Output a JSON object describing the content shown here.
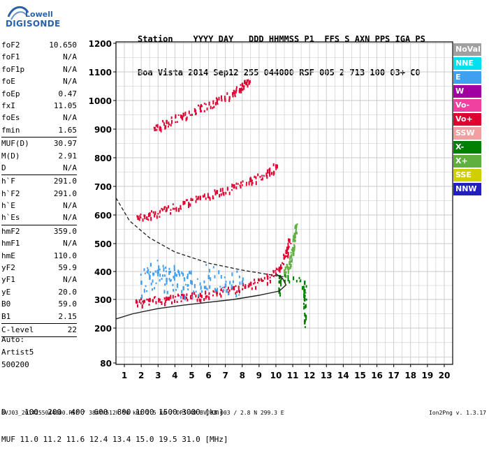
{
  "logo": {
    "line1": "Lowell",
    "line2": "DIGISONDE"
  },
  "header": {
    "row1": [
      "Station",
      "YYYY DAY",
      "DDD HHMMSS P1",
      "FFS S AXN PPS IGA PS"
    ],
    "row2": [
      "Boa Vista",
      "2014 Sep12",
      "255 044000 RSF",
      "005 2 713 100 03+ C0"
    ]
  },
  "params": {
    "group1": [
      {
        "name": "foF2",
        "value": "10.650"
      },
      {
        "name": "foF1",
        "value": "N/A"
      },
      {
        "name": "foF1p",
        "value": "N/A"
      },
      {
        "name": "foE",
        "value": "N/A"
      },
      {
        "name": "foEp",
        "value": "0.47"
      },
      {
        "name": "fxI",
        "value": "11.05"
      },
      {
        "name": "foEs",
        "value": "N/A"
      },
      {
        "name": "fmin",
        "value": "1.65"
      }
    ],
    "group2": [
      {
        "name": "MUF(D)",
        "value": "30.97"
      },
      {
        "name": "M(D)",
        "value": "2.91"
      },
      {
        "name": "D",
        "value": "N/A"
      }
    ],
    "group3": [
      {
        "name": "h`F",
        "value": "291.0"
      },
      {
        "name": "h`F2",
        "value": "291.0"
      },
      {
        "name": "h`E",
        "value": "N/A"
      },
      {
        "name": "h`Es",
        "value": "N/A"
      }
    ],
    "group4": [
      {
        "name": "hmF2",
        "value": "359.0"
      },
      {
        "name": "hmF1",
        "value": "N/A"
      },
      {
        "name": "hmE",
        "value": "110.0"
      },
      {
        "name": "yF2",
        "value": "59.9"
      },
      {
        "name": "yF1",
        "value": "N/A"
      },
      {
        "name": "yE",
        "value": "20.0"
      },
      {
        "name": "B0",
        "value": "59.0"
      },
      {
        "name": "B1",
        "value": "2.15"
      }
    ],
    "group5": [
      {
        "name": "C-level",
        "value": "22"
      }
    ]
  },
  "auto": {
    "line1": "Auto:",
    "line2": "Artist5",
    "line3": "500200"
  },
  "footer": {
    "d_label": "D",
    "d_values": [
      "100",
      "200",
      "400",
      "600",
      "800",
      "1000",
      "1500",
      "3000"
    ],
    "d_unit": "[km]",
    "muf_label": "MUF",
    "muf_values": [
      "11.0",
      "11.2",
      "11.6",
      "12.4",
      "13.4",
      "15.0",
      "19.5",
      "31.0"
    ],
    "muf_unit": "[MHz]"
  },
  "bottom_line": "BVJ03_2014255044000.RSF / 384fx512h 50 kHz 2.5 km / DPS-4D BVJ03 003 / 2.8 N 299.3 E",
  "version": "Ion2Png v. 1.3.17",
  "legend": [
    {
      "label": "NoVal",
      "color": "#a0a0a0"
    },
    {
      "label": "NNE",
      "color": "#00e0f0"
    },
    {
      "label": "E",
      "color": "#3fa0f0"
    },
    {
      "label": "W",
      "color": "#a000a0"
    },
    {
      "label": "Vo-",
      "color": "#f040a0"
    },
    {
      "label": "Vo+",
      "color": "#e00030"
    },
    {
      "label": "SSW",
      "color": "#f0a0a0"
    },
    {
      "label": "X-",
      "color": "#008000"
    },
    {
      "label": "X+",
      "color": "#60b040"
    },
    {
      "label": "SSE",
      "color": "#d0d000"
    },
    {
      "label": "NNW",
      "color": "#2020c0"
    }
  ],
  "chart_data": {
    "type": "scatter",
    "title": "",
    "xlabel": "",
    "ylabel": "",
    "xlim": [
      0.5,
      20.5
    ],
    "ylim": [
      80,
      1200
    ],
    "x_ticks": [
      "1",
      "2",
      "3",
      "4",
      "5",
      "6",
      "7",
      "8",
      "9",
      "10",
      "11",
      "12",
      "13",
      "14",
      "15",
      "16",
      "17",
      "18",
      "19",
      "20"
    ],
    "y_ticks": [
      "80",
      "200",
      "300",
      "400",
      "500",
      "600",
      "700",
      "800",
      "900",
      "1000",
      "1100",
      "1200"
    ],
    "grid": true,
    "y_scale": "reciprocal-like",
    "series": [
      {
        "name": "Vo+",
        "color": "#e00030",
        "points": [
          [
            1.7,
            293
          ],
          [
            2.5,
            298
          ],
          [
            3.5,
            303
          ],
          [
            4.5,
            308
          ],
          [
            5.5,
            316
          ],
          [
            6.5,
            326
          ],
          [
            7.5,
            340
          ],
          [
            8.5,
            356
          ],
          [
            9.5,
            378
          ],
          [
            10.2,
            410
          ],
          [
            10.6,
            470
          ],
          [
            10.8,
            510
          ]
        ]
      },
      {
        "name": "Vo+",
        "color": "#e00030",
        "points": [
          [
            1.8,
            590
          ],
          [
            2.5,
            602
          ],
          [
            3.5,
            620
          ],
          [
            4.5,
            642
          ],
          [
            5.5,
            660
          ],
          [
            6.5,
            680
          ],
          [
            7.5,
            700
          ],
          [
            8.5,
            722
          ],
          [
            9.5,
            752
          ],
          [
            10.0,
            770
          ]
        ]
      },
      {
        "name": "Vo+",
        "color": "#e00030",
        "points": [
          [
            2.8,
            900
          ],
          [
            3.5,
            925
          ],
          [
            4.5,
            950
          ],
          [
            5.5,
            975
          ],
          [
            6.5,
            1000
          ],
          [
            7.5,
            1030
          ],
          [
            8.0,
            1055
          ],
          [
            8.4,
            1062
          ]
        ]
      },
      {
        "name": "E",
        "color": "#3fa0f0",
        "points": [
          [
            2.0,
            360
          ],
          [
            2.5,
            380
          ],
          [
            3.0,
            400
          ],
          [
            3.5,
            370
          ],
          [
            4.0,
            390
          ],
          [
            4.5,
            340
          ],
          [
            5.0,
            360
          ],
          [
            6.0,
            380
          ],
          [
            7.0,
            350
          ],
          [
            8.0,
            360
          ]
        ]
      },
      {
        "name": "X+",
        "color": "#60b040",
        "points": [
          [
            10.5,
            400
          ],
          [
            10.8,
            430
          ],
          [
            11.0,
            480
          ],
          [
            11.1,
            530
          ],
          [
            11.2,
            560
          ]
        ]
      },
      {
        "name": "X-",
        "color": "#008000",
        "points": [
          [
            11.7,
            220
          ],
          [
            11.7,
            300
          ],
          [
            11.7,
            360
          ],
          [
            10.2,
            380
          ],
          [
            10.2,
            330
          ]
        ]
      }
    ],
    "profile_dashed": [
      [
        0.5,
        660
      ],
      [
        1.3,
        580
      ],
      [
        2.5,
        520
      ],
      [
        4.0,
        470
      ],
      [
        6.0,
        430
      ],
      [
        8.0,
        405
      ],
      [
        10.0,
        385
      ],
      [
        10.6,
        380
      ]
    ],
    "profile_solid": [
      [
        0.5,
        232
      ],
      [
        1.5,
        250
      ],
      [
        3.0,
        268
      ],
      [
        4.5,
        280
      ],
      [
        6.0,
        290
      ],
      [
        7.5,
        300
      ],
      [
        9.0,
        315
      ],
      [
        10.2,
        330
      ],
      [
        10.6,
        352
      ],
      [
        10.4,
        375
      ],
      [
        10.0,
        392
      ]
    ]
  }
}
